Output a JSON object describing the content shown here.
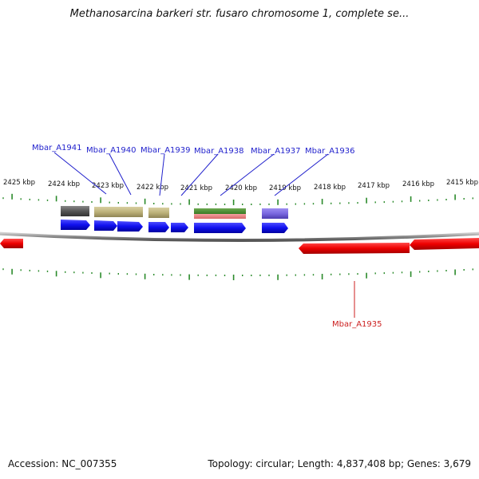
{
  "title": "Methanosarcina barkeri str. fusaro chromosome 1, complete se...",
  "footer": {
    "accession": "Accession: NC_007355",
    "summary": "Topology: circular; Length: 4,837,408 bp; Genes: 3,679"
  },
  "colors": {
    "forward_gene": "#1a1aff",
    "reverse_gene": "#ee0000",
    "backbone": "#888888",
    "tick": "#2a8a2a",
    "blue_label": "#1f1fcc",
    "red_label": "#cc1f1f"
  },
  "scale": {
    "tick_labels": [
      "2425 kbp",
      "2424 kbp",
      "2423 kbp",
      "2422 kbp",
      "2421 kbp",
      "2420 kbp",
      "2419 kbp",
      "2418 kbp",
      "2417 kbp",
      "2416 kbp",
      "2415 kbp"
    ]
  },
  "gene_labels": {
    "forward": [
      "Mbar_A1941",
      "Mbar_A1940",
      "Mbar_A1939",
      "Mbar_A1938",
      "Mbar_A1937",
      "Mbar_A1936"
    ],
    "reverse": [
      "Mbar_A1935"
    ]
  }
}
